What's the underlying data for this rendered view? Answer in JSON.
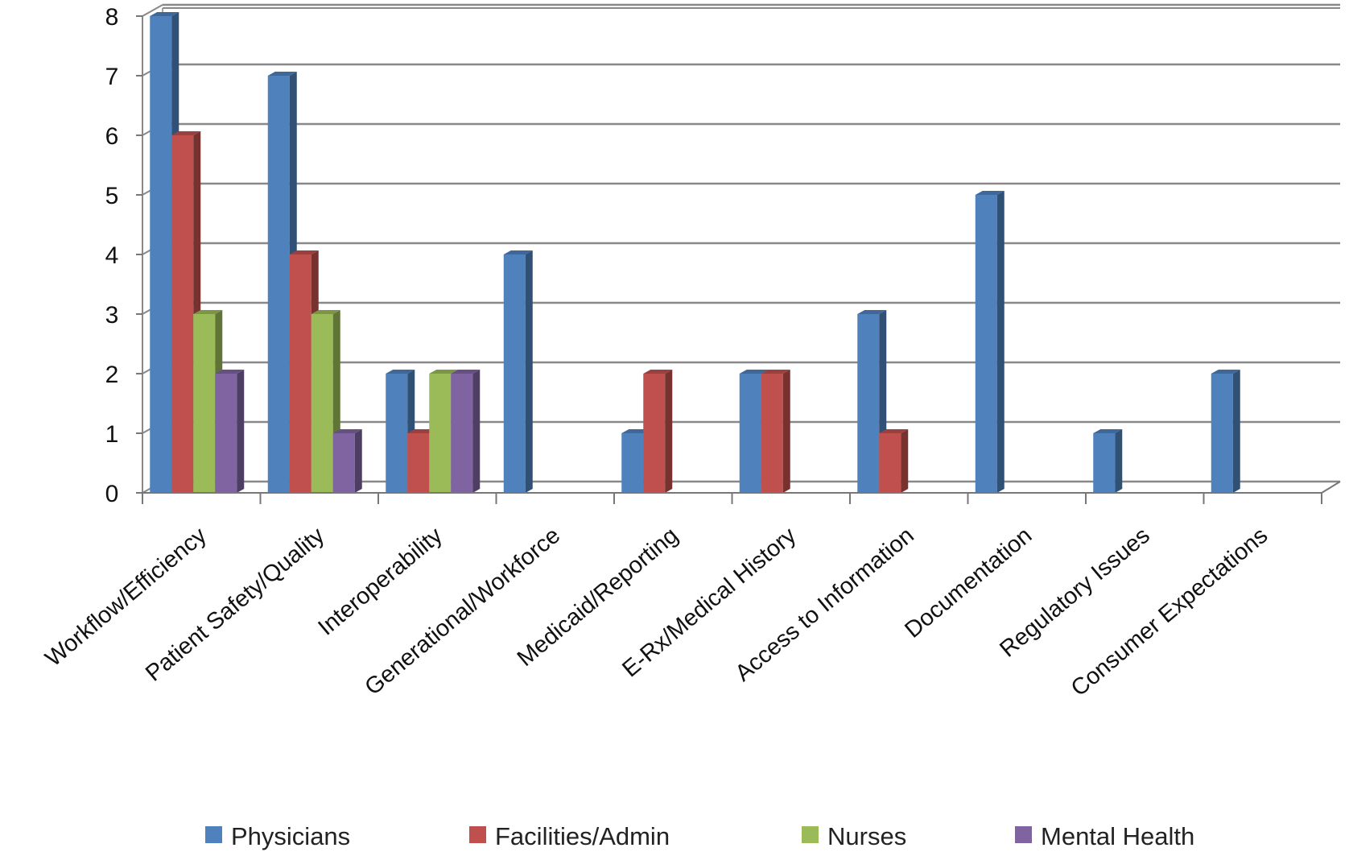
{
  "chart_data": {
    "type": "bar",
    "title": "",
    "xlabel": "",
    "ylabel": "",
    "ylim": [
      0,
      8
    ],
    "yticks": [
      0,
      1,
      2,
      3,
      4,
      5,
      6,
      7,
      8
    ],
    "grid": true,
    "legend_position": "bottom",
    "categories": [
      "Workflow/Efficiency",
      "Patient Safety/Quality",
      "Interoperability",
      "Generational/Workforce",
      "Medicaid/Reporting",
      "E-Rx/Medical History",
      "Access to Information",
      "Documentation",
      "Regulatory Issues",
      "Consumer Expectations"
    ],
    "series": [
      {
        "name": "Physicians",
        "color": "#4F81BD",
        "values": [
          8,
          7,
          2,
          4,
          1,
          2,
          3,
          5,
          1,
          2
        ]
      },
      {
        "name": "Facilities/Admin",
        "color": "#C0504D",
        "values": [
          6,
          4,
          1,
          0,
          2,
          2,
          1,
          0,
          0,
          0
        ]
      },
      {
        "name": "Nurses",
        "color": "#9BBB59",
        "values": [
          3,
          3,
          2,
          0,
          0,
          0,
          0,
          0,
          0,
          0
        ]
      },
      {
        "name": "Mental Health",
        "color": "#8064A2",
        "values": [
          2,
          1,
          2,
          0,
          0,
          0,
          0,
          0,
          0,
          0
        ]
      }
    ]
  }
}
